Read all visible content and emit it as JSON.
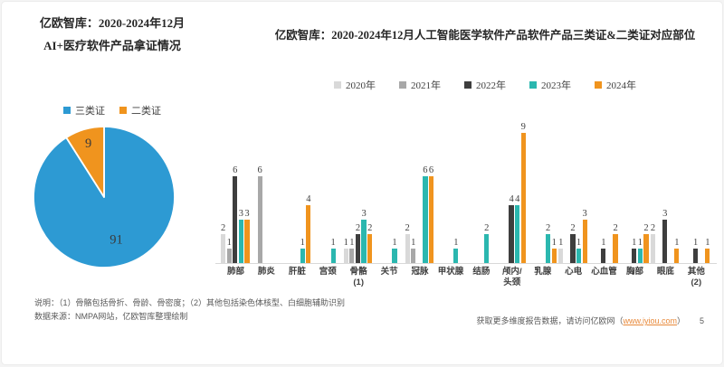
{
  "left": {
    "title_line1": "亿欧智库：2020-2024年12月",
    "title_line2": "AI+医疗软件产品拿证情况"
  },
  "right": {
    "title": "亿欧智库：2020-2024年12月人工智能医学软件产品软件产品三类证&二类证对应部位"
  },
  "notes": {
    "line1": "说明：（1）骨骼包括骨折、骨龄、骨密度；（2）其他包括染色体核型、白细胞辅助识别",
    "line2": "数据来源：NMPA网站，亿欧智库整理绘制"
  },
  "footer": {
    "text_before": "获取更多维度报告数据，请访问亿欧网（",
    "link": "www.iyiou.com",
    "text_after": "）",
    "page": "5"
  },
  "chart_data": [
    {
      "type": "pie",
      "title": "AI+医疗软件产品拿证情况",
      "legend_position": "top",
      "slices": [
        {
          "label": "三类证",
          "value": 91,
          "color": "#2d9ad3"
        },
        {
          "label": "二类证",
          "value": 9,
          "color": "#f0941e"
        }
      ]
    },
    {
      "type": "bar",
      "title": "2020-2024年12月人工智能医学软件产品软件产品三类证&二类证对应部位",
      "legend_position": "top",
      "grid": false,
      "ylim": [
        0,
        9
      ],
      "categories": [
        "肺部",
        "肺炎",
        "肝脏",
        "宫颈",
        "骨骼\n(1)",
        "关节",
        "冠脉",
        "甲状腺",
        "结肠",
        "颅内/\n头颈",
        "乳腺",
        "心电",
        "心血管",
        "胸部",
        "眼底",
        "其他\n(2)"
      ],
      "series": [
        {
          "name": "2020年",
          "color": "#d9d9d9",
          "values": [
            2,
            null,
            null,
            null,
            1,
            null,
            2,
            null,
            null,
            null,
            null,
            1,
            null,
            null,
            2,
            null
          ]
        },
        {
          "name": "2021年",
          "color": "#a8a8a8",
          "values": [
            1,
            6,
            null,
            null,
            1,
            null,
            1,
            null,
            null,
            null,
            null,
            null,
            null,
            null,
            null,
            null
          ]
        },
        {
          "name": "2022年",
          "color": "#3e3e3e",
          "values": [
            6,
            null,
            null,
            null,
            2,
            null,
            null,
            null,
            null,
            4,
            null,
            2,
            1,
            1,
            3,
            1
          ]
        },
        {
          "name": "2023年",
          "color": "#2bb7af",
          "values": [
            3,
            null,
            1,
            1,
            3,
            1,
            6,
            1,
            2,
            4,
            2,
            1,
            null,
            1,
            null,
            null
          ]
        },
        {
          "name": "2024年",
          "color": "#f0941e",
          "values": [
            3,
            null,
            4,
            null,
            2,
            null,
            6,
            null,
            null,
            9,
            1,
            3,
            2,
            2,
            1,
            1
          ]
        }
      ]
    }
  ]
}
